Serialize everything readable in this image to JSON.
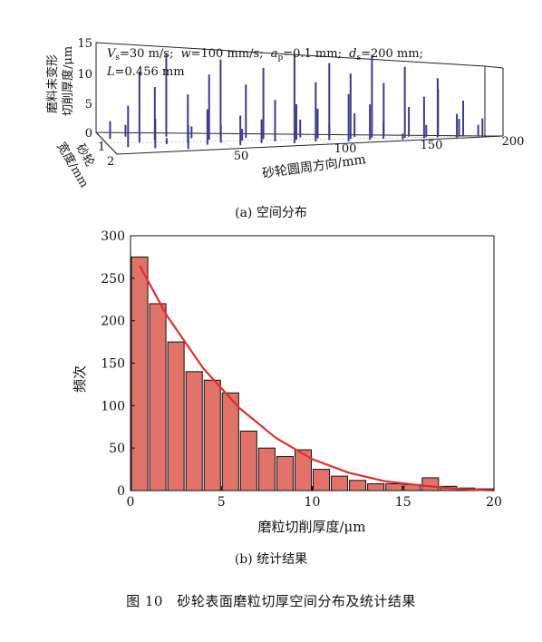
{
  "figure_caption": "图 10　砂轮表面磨粒切厚空间分布及统计结果",
  "panel_a": {
    "caption": "(a) 空间分布",
    "params": {
      "vs": "V",
      "vs_sub": "s",
      "vs_val": "=30 m/s;",
      "w": "w",
      "w_val": "=100 mm/s;",
      "ap": "a",
      "ap_sub": "p",
      "ap_val": "=0.1 mm;",
      "ds": "d",
      "ds_sub": "s",
      "ds_val": "=200 mm;",
      "L": "L",
      "L_val": "=0.456 mm"
    },
    "zlabel_line1": "磨料未变形",
    "zlabel_line2": "切削厚度/μm",
    "ylabel_line1": "砂轮",
    "ylabel_line2": "宽度/mm",
    "xlabel": "砂轮圆周方向/mm",
    "z_ticks": [
      "15",
      "10",
      "5",
      "0"
    ],
    "y_ticks": [
      "1",
      "2"
    ],
    "x_ticks": [
      "50",
      "100",
      "150",
      "200"
    ]
  },
  "panel_b": {
    "caption": "(b) 统计结果",
    "xlabel": "磨粒切削厚度/μm",
    "ylabel": "频次",
    "x_ticks": [
      "0",
      "5",
      "10",
      "15",
      "20"
    ],
    "y_ticks": [
      "0",
      "50",
      "100",
      "150",
      "200",
      "250",
      "300"
    ]
  },
  "chart_data": [
    {
      "type": "scatter",
      "title": "",
      "xlabel": "砂轮圆周方向/mm",
      "ylabel": "砂轮宽度/mm",
      "zlabel": "磨料未变形切削厚度/μm",
      "xlim": [
        0,
        200
      ],
      "ylim": [
        1,
        2
      ],
      "zlim": [
        0,
        15
      ],
      "bar_color": "#3d3a8c",
      "x": [
        4,
        9,
        13,
        17,
        22,
        26,
        30,
        34,
        38,
        42,
        46,
        50,
        54,
        58,
        62,
        66,
        70,
        74,
        78,
        82,
        86,
        90,
        94,
        98,
        102,
        106,
        110,
        114,
        118,
        122,
        126,
        130,
        134,
        138,
        142,
        146,
        150,
        154,
        158,
        162,
        166,
        170,
        174,
        178,
        182,
        186,
        190,
        195
      ],
      "y": [
        1.3,
        1.7,
        1.2,
        1.5,
        1.8,
        1.4,
        1.6,
        1.2,
        1.9,
        1.5,
        1.3,
        1.7,
        1.4,
        1.6,
        1.2,
        1.8,
        1.5,
        1.3,
        1.7,
        1.4,
        1.6,
        1.2,
        1.8,
        1.5,
        1.3,
        1.7,
        1.4,
        1.6,
        1.2,
        1.8,
        1.5,
        1.3,
        1.7,
        1.4,
        1.6,
        1.2,
        1.8,
        1.5,
        1.3,
        1.7,
        1.4,
        1.6,
        1.2,
        1.8,
        1.5,
        1.3,
        1.7,
        1.4
      ],
      "z": [
        3,
        7,
        2,
        12,
        5,
        9,
        1,
        14,
        4,
        8,
        2,
        6,
        11,
        3,
        13,
        5,
        2,
        9,
        4,
        12,
        7,
        1,
        15,
        6,
        3,
        10,
        5,
        13,
        2,
        8,
        11,
        4,
        6,
        14,
        3,
        9,
        1,
        12,
        5,
        7,
        2,
        10,
        8,
        4,
        3,
        6,
        2,
        3
      ]
    },
    {
      "type": "bar",
      "title": "",
      "xlabel": "磨粒切削厚度/μm",
      "ylabel": "频次",
      "bin_width": 1,
      "categories": [
        "0-1",
        "1-2",
        "2-3",
        "3-4",
        "4-5",
        "5-6",
        "6-7",
        "7-8",
        "8-9",
        "9-10",
        "10-11",
        "11-12",
        "12-13",
        "13-14",
        "14-15",
        "15-16",
        "16-17",
        "17-18",
        "18-19",
        "19-20"
      ],
      "values": [
        275,
        220,
        175,
        140,
        130,
        115,
        70,
        50,
        40,
        48,
        25,
        17,
        12,
        8,
        8,
        7,
        15,
        5,
        3,
        2
      ],
      "fit_curve": {
        "x": [
          0.5,
          2,
          4,
          6,
          8,
          10,
          12,
          14,
          16,
          18,
          20
        ],
        "y": [
          265,
          206,
          144,
          97,
          62,
          37,
          21,
          11,
          6,
          2,
          0
        ]
      },
      "xlim": [
        0,
        20
      ],
      "ylim": [
        0,
        300
      ],
      "bar_color": "#e07268",
      "curve_color": "#e32d2d"
    }
  ]
}
